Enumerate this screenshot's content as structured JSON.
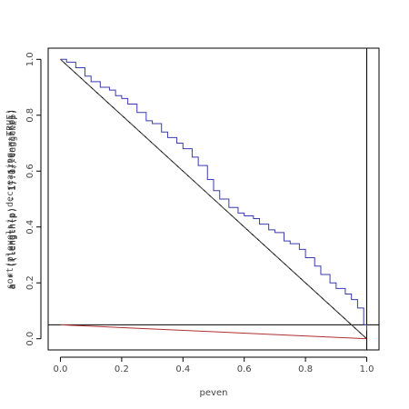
{
  "chart_data": {
    "type": "line",
    "xlabel": "peven",
    "ylabel_overlays": [
      "a * ((length(p) - 1):1/length(p))",
      "sort(plevel:i, decreasing = TRUE)",
      "a * ((length(p) - 1):0)/length(p)"
    ],
    "xlim": [
      -0.04,
      1.04
    ],
    "ylim": [
      -0.04,
      1.04
    ],
    "xticks": [
      "0.0",
      "0.2",
      "0.4",
      "0.6",
      "0.8",
      "1.0"
    ],
    "yticks": [
      "0.0",
      "0.2",
      "0.4",
      "0.6",
      "0.8",
      "1.0"
    ],
    "grid": false,
    "series": [
      {
        "color": "#3a3ab0",
        "style": "step",
        "x": [
          0.0,
          0.02,
          0.05,
          0.08,
          0.1,
          0.13,
          0.16,
          0.18,
          0.2,
          0.22,
          0.25,
          0.28,
          0.3,
          0.33,
          0.35,
          0.38,
          0.4,
          0.43,
          0.45,
          0.48,
          0.5,
          0.52,
          0.55,
          0.58,
          0.6,
          0.63,
          0.65,
          0.68,
          0.7,
          0.73,
          0.75,
          0.78,
          0.8,
          0.83,
          0.85,
          0.88,
          0.9,
          0.93,
          0.95,
          0.97,
          0.99,
          1.0
        ],
        "y": [
          1.0,
          0.99,
          0.97,
          0.94,
          0.92,
          0.9,
          0.89,
          0.87,
          0.86,
          0.84,
          0.81,
          0.78,
          0.77,
          0.74,
          0.72,
          0.7,
          0.68,
          0.65,
          0.62,
          0.57,
          0.53,
          0.5,
          0.47,
          0.45,
          0.44,
          0.43,
          0.41,
          0.39,
          0.38,
          0.35,
          0.34,
          0.32,
          0.29,
          0.26,
          0.23,
          0.2,
          0.18,
          0.16,
          0.14,
          0.11,
          0.05,
          0.03
        ]
      },
      {
        "color": "#000000",
        "style": "solid",
        "x": [
          0.0,
          1.0
        ],
        "y": [
          1.0,
          0.0
        ]
      },
      {
        "color": "#555555",
        "style": "dashed",
        "x": [
          0.0,
          1.0
        ],
        "y": [
          1.0,
          0.0
        ]
      },
      {
        "color": "#b03030",
        "style": "solid",
        "x": [
          0.0,
          1.0
        ],
        "y": [
          0.05,
          0.0
        ]
      }
    ],
    "reference_lines": {
      "horizontal": [
        0.05
      ],
      "vertical": [
        1.0
      ]
    }
  }
}
